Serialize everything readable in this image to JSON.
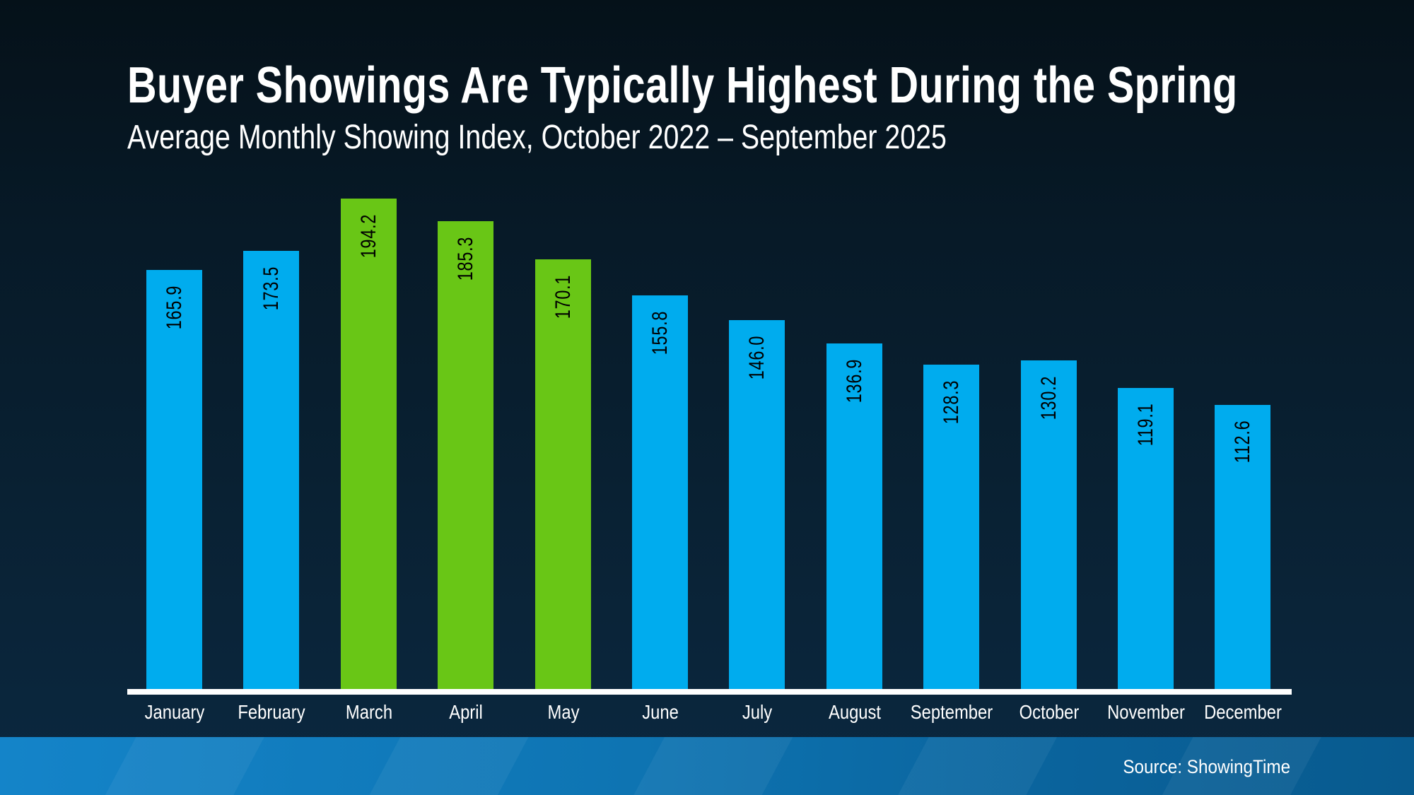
{
  "slide": {
    "title": "Buyer Showings Are Typically Highest During the Spring",
    "subtitle": "Average Monthly Showing Index, October 2022 – September 2025",
    "source": "Source: ShowingTime"
  },
  "colors": {
    "bar_blue": "#00acee",
    "bar_green": "#69c616",
    "background_top": "#051119",
    "background_bottom": "#0b2840",
    "footer_blue_left": "#1484c9",
    "footer_blue_right": "#085a8e",
    "axis_line": "#ffffff",
    "value_label_text": "#000000",
    "month_label_text": "#ffffff",
    "title_text": "#ffffff"
  },
  "chart_data": {
    "type": "bar",
    "title": "Buyer Showings Are Typically Highest During the Spring",
    "subtitle": "Average Monthly Showing Index, October 2022 – September 2025",
    "source": "Source: ShowingTime",
    "categories": [
      "January",
      "February",
      "March",
      "April",
      "May",
      "June",
      "July",
      "August",
      "September",
      "October",
      "November",
      "December"
    ],
    "values": [
      165.9,
      173.5,
      194.2,
      185.3,
      170.1,
      155.8,
      146.0,
      136.9,
      128.3,
      130.2,
      119.1,
      112.6
    ],
    "value_labels": [
      "165.9",
      "173.5",
      "194.2",
      "185.3",
      "170.1",
      "155.8",
      "146.0",
      "136.9",
      "128.3",
      "130.2",
      "119.1",
      "112.6"
    ],
    "highlighted_categories": [
      "March",
      "April",
      "May"
    ],
    "highlight_color": "#69c616",
    "default_color": "#00acee",
    "value_label_rotation": "vertical-bottom-to-top",
    "value_label_position": "inside-top",
    "xlabel": "",
    "ylabel": "",
    "ylim": [
      0,
      200
    ],
    "grid": false,
    "legend": "none",
    "x_axis_line": true,
    "y_axis_shown": false
  }
}
